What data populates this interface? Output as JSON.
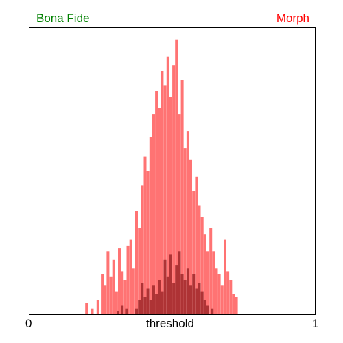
{
  "chart_data": {
    "type": "bar",
    "style": "overlapping histograms",
    "legend": {
      "left": {
        "label": "Bona Fide",
        "color": "#008000"
      },
      "right": {
        "label": "Morph",
        "color": "#ff0000"
      }
    },
    "xlabel": "threshold",
    "x_tick_labels": [
      "0",
      "1"
    ],
    "xlim": [
      0,
      1
    ],
    "y_axis": "relative frequency, unlabeled",
    "ylim": [
      0,
      1
    ],
    "series": [
      {
        "name": "Morph",
        "color": "#ff5a5a",
        "bins": [
          {
            "x": 0.2,
            "y": 0.04
          },
          {
            "x": 0.22,
            "y": 0.02
          },
          {
            "x": 0.24,
            "y": 0.05
          },
          {
            "x": 0.255,
            "y": 0.14
          },
          {
            "x": 0.265,
            "y": 0.1
          },
          {
            "x": 0.275,
            "y": 0.22
          },
          {
            "x": 0.285,
            "y": 0.13
          },
          {
            "x": 0.295,
            "y": 0.19
          },
          {
            "x": 0.305,
            "y": 0.08
          },
          {
            "x": 0.315,
            "y": 0.23
          },
          {
            "x": 0.325,
            "y": 0.15
          },
          {
            "x": 0.335,
            "y": 0.12
          },
          {
            "x": 0.345,
            "y": 0.24
          },
          {
            "x": 0.355,
            "y": 0.26
          },
          {
            "x": 0.365,
            "y": 0.16
          },
          {
            "x": 0.375,
            "y": 0.36
          },
          {
            "x": 0.385,
            "y": 0.3
          },
          {
            "x": 0.395,
            "y": 0.45
          },
          {
            "x": 0.405,
            "y": 0.55
          },
          {
            "x": 0.415,
            "y": 0.5
          },
          {
            "x": 0.425,
            "y": 0.62
          },
          {
            "x": 0.435,
            "y": 0.7
          },
          {
            "x": 0.445,
            "y": 0.78
          },
          {
            "x": 0.455,
            "y": 0.72
          },
          {
            "x": 0.465,
            "y": 0.85
          },
          {
            "x": 0.475,
            "y": 0.8
          },
          {
            "x": 0.485,
            "y": 0.9
          },
          {
            "x": 0.495,
            "y": 0.76
          },
          {
            "x": 0.505,
            "y": 0.87
          },
          {
            "x": 0.515,
            "y": 0.96
          },
          {
            "x": 0.525,
            "y": 0.7
          },
          {
            "x": 0.535,
            "y": 0.82
          },
          {
            "x": 0.545,
            "y": 0.58
          },
          {
            "x": 0.555,
            "y": 0.64
          },
          {
            "x": 0.565,
            "y": 0.54
          },
          {
            "x": 0.575,
            "y": 0.43
          },
          {
            "x": 0.585,
            "y": 0.48
          },
          {
            "x": 0.595,
            "y": 0.38
          },
          {
            "x": 0.605,
            "y": 0.34
          },
          {
            "x": 0.615,
            "y": 0.28
          },
          {
            "x": 0.625,
            "y": 0.22
          },
          {
            "x": 0.635,
            "y": 0.3
          },
          {
            "x": 0.645,
            "y": 0.22
          },
          {
            "x": 0.655,
            "y": 0.16
          },
          {
            "x": 0.665,
            "y": 0.14
          },
          {
            "x": 0.675,
            "y": 0.1
          },
          {
            "x": 0.685,
            "y": 0.26
          },
          {
            "x": 0.695,
            "y": 0.15
          },
          {
            "x": 0.705,
            "y": 0.12
          },
          {
            "x": 0.715,
            "y": 0.07
          },
          {
            "x": 0.725,
            "y": 0.06
          }
        ]
      },
      {
        "name": "Bona Fide",
        "color": "#a0282a",
        "bins": [
          {
            "x": 0.31,
            "y": 0.01
          },
          {
            "x": 0.325,
            "y": 0.03
          },
          {
            "x": 0.34,
            "y": 0.02
          },
          {
            "x": 0.375,
            "y": 0.02
          },
          {
            "x": 0.385,
            "y": 0.05
          },
          {
            "x": 0.395,
            "y": 0.11
          },
          {
            "x": 0.405,
            "y": 0.06
          },
          {
            "x": 0.415,
            "y": 0.09
          },
          {
            "x": 0.425,
            "y": 0.05
          },
          {
            "x": 0.435,
            "y": 0.1
          },
          {
            "x": 0.445,
            "y": 0.07
          },
          {
            "x": 0.455,
            "y": 0.12
          },
          {
            "x": 0.465,
            "y": 0.08
          },
          {
            "x": 0.475,
            "y": 0.19
          },
          {
            "x": 0.485,
            "y": 0.13
          },
          {
            "x": 0.495,
            "y": 0.21
          },
          {
            "x": 0.505,
            "y": 0.11
          },
          {
            "x": 0.515,
            "y": 0.17
          },
          {
            "x": 0.525,
            "y": 0.22
          },
          {
            "x": 0.535,
            "y": 0.14
          },
          {
            "x": 0.545,
            "y": 0.12
          },
          {
            "x": 0.555,
            "y": 0.16
          },
          {
            "x": 0.565,
            "y": 0.1
          },
          {
            "x": 0.575,
            "y": 0.14
          },
          {
            "x": 0.585,
            "y": 0.09
          },
          {
            "x": 0.595,
            "y": 0.11
          },
          {
            "x": 0.605,
            "y": 0.08
          },
          {
            "x": 0.615,
            "y": 0.05
          },
          {
            "x": 0.625,
            "y": 0.03
          },
          {
            "x": 0.64,
            "y": 0.02
          }
        ]
      }
    ]
  }
}
